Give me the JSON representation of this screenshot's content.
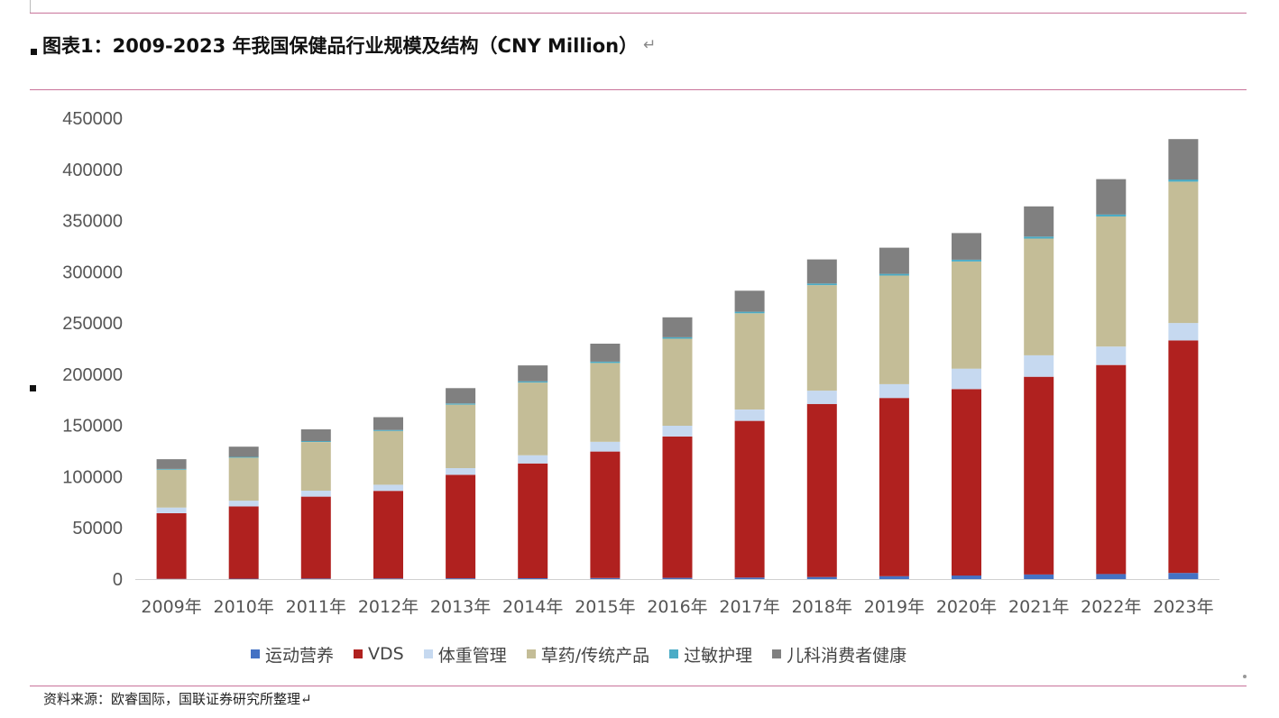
{
  "header": {
    "title": "图表1：2009-2023 年我国保健品行业规模及结构（CNY Million）",
    "return_mark": "↵"
  },
  "footer": {
    "source": "资料来源：欧睿国际，国联证券研究所整理↵"
  },
  "chart_data": {
    "type": "bar",
    "stacked": true,
    "title": "图表1：2009-2023 年我国保健品行业规模及结构（CNY Million）",
    "xlabel": "",
    "ylabel": "",
    "ylim": [
      0,
      450000
    ],
    "yticks": [
      0,
      50000,
      100000,
      150000,
      200000,
      250000,
      300000,
      350000,
      400000,
      450000
    ],
    "grid": false,
    "legend_position": "bottom",
    "categories": [
      "2009年",
      "2010年",
      "2011年",
      "2012年",
      "2013年",
      "2014年",
      "2015年",
      "2016年",
      "2017年",
      "2018年",
      "2019年",
      "2020年",
      "2021年",
      "2022年",
      "2023年"
    ],
    "series": [
      {
        "name": "运动营养",
        "color": "#4472c4",
        "values": [
          300,
          400,
          500,
          600,
          800,
          900,
          1000,
          1200,
          1500,
          2000,
          2800,
          3500,
          4500,
          5000,
          6000
        ]
      },
      {
        "name": "VDS",
        "color": "#b0211f",
        "values": [
          64000,
          70500,
          80000,
          85500,
          101000,
          112000,
          123500,
          138000,
          153000,
          169000,
          174000,
          182000,
          193000,
          204000,
          227000
        ]
      },
      {
        "name": "体重管理",
        "color": "#c6d9f0",
        "values": [
          5500,
          5600,
          5800,
          6000,
          6500,
          8000,
          9500,
          10500,
          11000,
          13000,
          13500,
          20000,
          21000,
          18000,
          17000
        ]
      },
      {
        "name": "草药/传统产品",
        "color": "#c4bd97",
        "values": [
          37000,
          42000,
          47500,
          52500,
          62000,
          71000,
          77000,
          85000,
          94000,
          103000,
          106000,
          104500,
          114000,
          127000,
          138000
        ]
      },
      {
        "name": "过敏护理",
        "color": "#4bacc6",
        "values": [
          700,
          800,
          900,
          1000,
          1100,
          1200,
          1300,
          1400,
          1500,
          1600,
          1700,
          1800,
          1900,
          2000,
          2100
        ]
      },
      {
        "name": "儿科消费者健康",
        "color": "#808080",
        "values": [
          9500,
          10000,
          11500,
          12500,
          15000,
          15500,
          17500,
          19500,
          20500,
          23500,
          25500,
          26000,
          29500,
          34500,
          39500
        ]
      }
    ]
  }
}
